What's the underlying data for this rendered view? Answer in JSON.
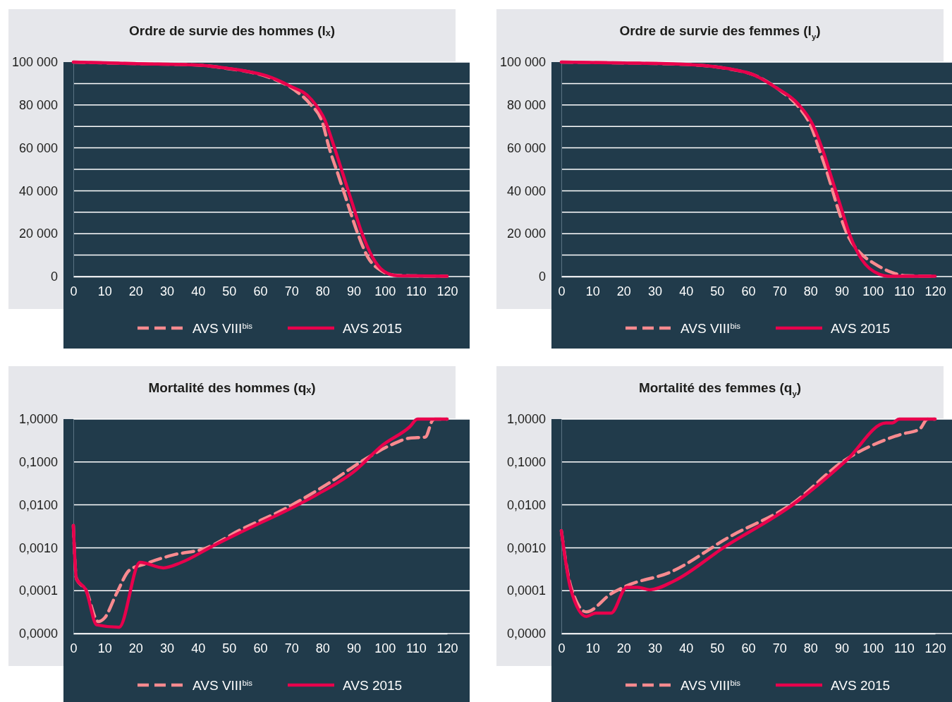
{
  "chart_data": [
    {
      "type": "line",
      "title": "Ordre de survie des hommes (lₓ)",
      "xlim": [
        0,
        120
      ],
      "xticks": [
        0,
        10,
        20,
        30,
        40,
        50,
        60,
        70,
        80,
        90,
        100,
        110,
        120
      ],
      "ylim": [
        0,
        100000
      ],
      "yticks": [
        0,
        {
          "value": 10000,
          "label": null
        },
        {
          "value": 20000,
          "label": "20 000"
        },
        {
          "value": 30000,
          "label": null
        },
        {
          "value": 40000,
          "label": "40 000"
        },
        {
          "value": 50000,
          "label": null
        },
        {
          "value": 60000,
          "label": "60 000"
        },
        {
          "value": 70000,
          "label": null
        },
        {
          "value": 80000,
          "label": "80 000"
        },
        {
          "value": 90000,
          "label": null
        },
        {
          "value": 100000,
          "label": "100 000"
        }
      ],
      "grid": "y",
      "legend": "bottom",
      "series": [
        {
          "name": "AVS VIII$^{bis}$",
          "color": "#f98a8f",
          "line_style": "dashed",
          "x": [
            0,
            20,
            40,
            50,
            55,
            62,
            71,
            76,
            80,
            82,
            85,
            88,
            91,
            94.5,
            99,
            103,
            110,
            120
          ],
          "values": [
            100000,
            99300,
            98600,
            96900,
            95800,
            93300,
            87000,
            80500,
            71700,
            60700,
            47600,
            34400,
            21300,
            9200,
            2600,
            700,
            300,
            200
          ]
        },
        {
          "name": "AVS 2015",
          "color": "#e8004c",
          "line_style": "solid",
          "x": [
            0,
            20,
            40,
            50,
            55,
            62,
            69,
            76.4,
            80.8,
            83.7,
            86.6,
            89.5,
            92.4,
            96,
            99.6,
            104,
            110,
            120
          ],
          "values": [
            100000,
            99300,
            98600,
            97000,
            95900,
            93600,
            89200,
            82600,
            72800,
            60700,
            47600,
            34400,
            21300,
            9200,
            2600,
            400,
            300,
            200
          ]
        }
      ]
    },
    {
      "type": "line",
      "title": "Ordre de survie des femmes (l$_{y}$)",
      "xlim": [
        0,
        120
      ],
      "xticks": [
        0,
        10,
        20,
        30,
        40,
        50,
        60,
        70,
        80,
        90,
        100,
        110,
        120
      ],
      "ylim": [
        0,
        100000
      ],
      "yticks": [
        0,
        {
          "value": 10000,
          "label": null
        },
        {
          "value": 20000,
          "label": "20 000"
        },
        {
          "value": 30000,
          "label": null
        },
        {
          "value": 40000,
          "label": "40 000"
        },
        {
          "value": 50000,
          "label": null
        },
        {
          "value": 60000,
          "label": "60 000"
        },
        {
          "value": 70000,
          "label": null
        },
        {
          "value": 80000,
          "label": "80 000"
        },
        {
          "value": 90000,
          "label": null
        },
        {
          "value": 100000,
          "label": "100 000"
        }
      ],
      "grid": "y",
      "legend": "bottom",
      "series": [
        {
          "name": "AVS VIII$^{bis}$",
          "color": "#f98a8f",
          "line_style": "dashed",
          "x": [
            0,
            20,
            40,
            50,
            55,
            62,
            70,
            76,
            80,
            83,
            86,
            88.7,
            92,
            95.7,
            100.7,
            105.8,
            111,
            120
          ],
          "values": [
            100000,
            99600,
            98900,
            97700,
            96500,
            93900,
            87000,
            79400,
            70600,
            58600,
            45400,
            32200,
            19100,
            11400,
            5900,
            2100,
            400,
            200
          ]
        },
        {
          "name": "AVS 2015",
          "color": "#e8004c",
          "line_style": "solid",
          "x": [
            0,
            20,
            40,
            50,
            55,
            61.5,
            68.8,
            76,
            80.8,
            84,
            86.9,
            89.8,
            92.7,
            96.4,
            102.2,
            105,
            110,
            120
          ],
          "values": [
            100000,
            99600,
            98900,
            97700,
            96600,
            94200,
            88200,
            80500,
            70600,
            58600,
            45400,
            32200,
            19100,
            8100,
            1000,
            200,
            200,
            200
          ]
        }
      ]
    },
    {
      "type": "line",
      "title": "Mortalité des hommes (qₓ)",
      "xlim": [
        0,
        120
      ],
      "xticks": [
        0,
        10,
        20,
        30,
        40,
        50,
        60,
        70,
        80,
        90,
        100,
        110,
        120
      ],
      "log": "y",
      "ylim": [
        1e-05,
        1
      ],
      "yticks": [
        {
          "value": 1e-05,
          "label": "0,0000"
        },
        {
          "value": 0.0001,
          "label": "0,0001"
        },
        {
          "value": 0.001,
          "label": "0,0010"
        },
        {
          "value": 0.01,
          "label": "0,0100"
        },
        {
          "value": 0.1,
          "label": "0,1000"
        },
        {
          "value": 1,
          "label": "1,0000"
        }
      ],
      "grid": "y",
      "legend": "bottom",
      "series": [
        {
          "name": "AVS VIII$^{bis}$",
          "color": "#f98a8f",
          "line_style": "dashed",
          "x": [
            0,
            1,
            4,
            8,
            10,
            14,
            18,
            23,
            32,
            42,
            54,
            68.5,
            82,
            94,
            102,
            108,
            113,
            115.3,
            116,
            120
          ],
          "values": [
            0.0033,
            0.00019,
            0.000105,
            1.9e-05,
            2.3e-05,
            9e-05,
            0.0003,
            0.00042,
            0.00068,
            0.00095,
            0.0027,
            0.0085,
            0.032,
            0.12,
            0.25,
            0.36,
            0.38,
            0.93,
            1,
            1
          ]
        },
        {
          "name": "AVS 2015",
          "color": "#e8004c",
          "line_style": "solid",
          "x": [
            0,
            1,
            4,
            7.5,
            14.7,
            21.4,
            28.9,
            34.5,
            44.8,
            56.6,
            68.5,
            78,
            90,
            99.4,
            108,
            110.5,
            120
          ],
          "values": [
            0.0033,
            0.00019,
            0.000105,
            1.6e-05,
            1.4e-05,
            0.00046,
            0.00034,
            0.00045,
            0.0011,
            0.0029,
            0.0074,
            0.017,
            0.059,
            0.25,
            0.66,
            1,
            1
          ]
        }
      ]
    },
    {
      "type": "line",
      "title": "Mortalité des femmes (q$_{y}$)",
      "xlim": [
        0,
        120
      ],
      "xticks": [
        0,
        10,
        20,
        30,
        40,
        50,
        60,
        70,
        80,
        90,
        100,
        110,
        120
      ],
      "log": "y",
      "ylim": [
        1e-05,
        1
      ],
      "yticks": [
        {
          "value": 1e-05,
          "label": "0,0000"
        },
        {
          "value": 0.0001,
          "label": "0,0001"
        },
        {
          "value": 0.001,
          "label": "0,0010"
        },
        {
          "value": 0.01,
          "label": "0,0100"
        },
        {
          "value": 0.1,
          "label": "0,1000"
        },
        {
          "value": 1,
          "label": "1,0000"
        }
      ],
      "grid": "y",
      "legend": "bottom",
      "series": [
        {
          "name": "AVS VIII$^{bis}$",
          "color": "#f98a8f",
          "line_style": "dashed",
          "x": [
            0,
            3,
            8,
            16,
            21,
            35,
            54,
            74,
            91,
            109,
            115,
            117.6,
            120
          ],
          "values": [
            0.0025,
            0.00013,
            3.2e-05,
            8.5e-05,
            0.00013,
            0.00027,
            0.0018,
            0.0105,
            0.11,
            0.44,
            0.58,
            1,
            1
          ]
        },
        {
          "name": "AVS 2015",
          "color": "#e8004c",
          "line_style": "solid",
          "x": [
            0,
            3,
            8,
            11,
            16,
            21,
            24.5,
            28.4,
            36.3,
            52,
            75,
            91.6,
            104.2,
            106.2,
            108.5,
            120
          ],
          "values": [
            0.0025,
            0.00011,
            2.5e-05,
            3e-05,
            3e-05,
            0.00012,
            0.00012,
            0.000105,
            0.00017,
            0.001,
            0.011,
            0.11,
            0.81,
            0.81,
            1,
            1
          ]
        }
      ]
    }
  ]
}
